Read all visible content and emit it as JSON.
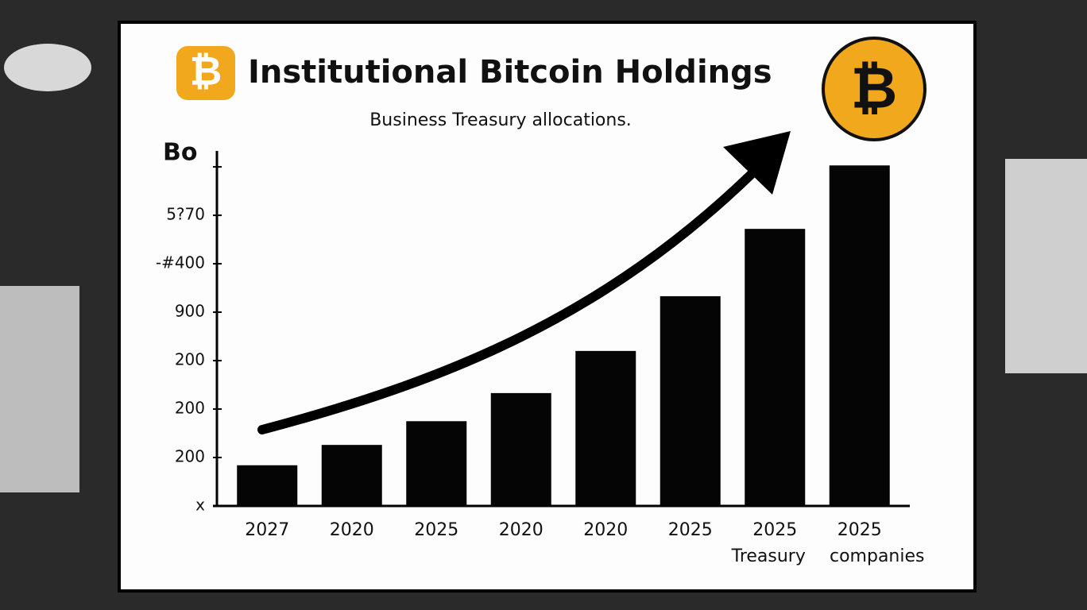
{
  "chart_data": {
    "type": "bar",
    "title": "Institutional Bitcoin Holdings",
    "subtitle": "Business Treasury allocations.",
    "y_label": "Bo",
    "categories": [
      "2027",
      "2020",
      "2025",
      "2020",
      "2020",
      "2025",
      "2025",
      "2025"
    ],
    "category_notes": [
      "Treasury",
      "companies"
    ],
    "values": [
      0.84,
      1.26,
      1.75,
      2.33,
      3.2,
      4.33,
      5.72,
      7.03
    ],
    "color": "#050505",
    "ylim": [
      0,
      7.1
    ],
    "yticks": [
      {
        "value": 0,
        "label": "x"
      },
      {
        "value": 1,
        "label": "200"
      },
      {
        "value": 2,
        "label": "200"
      },
      {
        "value": 3,
        "label": "200"
      },
      {
        "value": 4,
        "label": "900"
      },
      {
        "value": 5,
        "label": "-#400"
      },
      {
        "value": 6,
        "label": "5?70"
      },
      {
        "value": 7,
        "label": ""
      }
    ]
  }
}
